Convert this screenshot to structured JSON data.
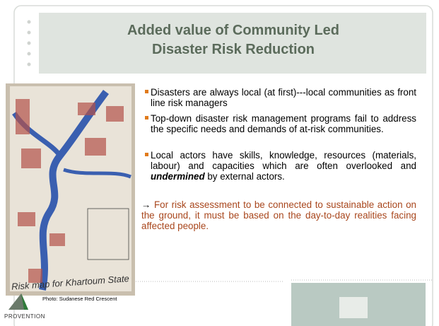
{
  "title": {
    "lines": [
      "Added value of Community Led",
      "Disaster Risk Reduction"
    ]
  },
  "bullets": [
    {
      "text": "Disasters are always local (at first)---local communities as front line risk managers"
    },
    {
      "text": "Top-down disaster risk management programs fail to address the specific needs and demands of at-risk communities."
    },
    {
      "parts": [
        "Local actors have skills, knowledge, resources (materials, labour) and capacities which are often overlooked and ",
        "undermined",
        " by external actors."
      ]
    }
  ],
  "conclusion": {
    "arrow": "→",
    "text": "For risk assessment to be connected to sustainable action on the ground, it must be based on the day-to-day realities facing affected people."
  },
  "photo": {
    "caption": "Photo: Sudanese Red Crescent",
    "map_label": "Risk map for Khartoum State"
  },
  "logo": {
    "text": "PROVENTION"
  }
}
